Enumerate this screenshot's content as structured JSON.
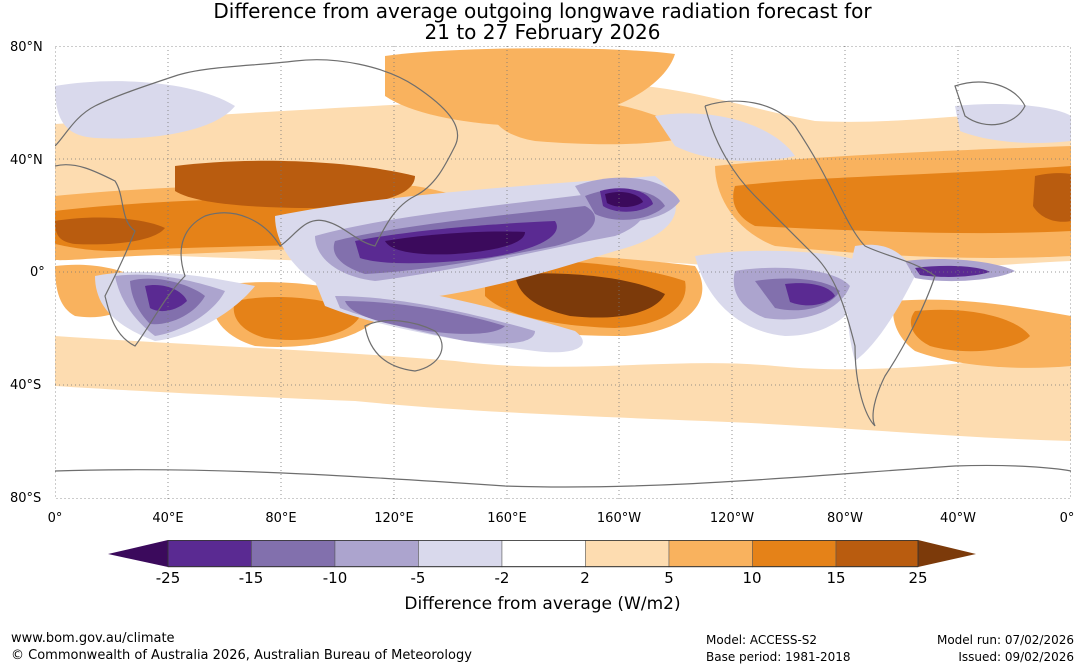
{
  "title_line1": "Difference from average outgoing longwave radiation forecast for",
  "title_line2": "21 to 27 February 2026",
  "lat_labels": [
    "80°N",
    "40°N",
    "0°",
    "40°S",
    "80°S"
  ],
  "lon_labels": [
    "0°",
    "40°E",
    "80°E",
    "120°E",
    "160°E",
    "160°W",
    "120°W",
    "80°W",
    "40°W",
    "0°"
  ],
  "colorbar": {
    "ticks": [
      "-25",
      "-15",
      "-10",
      "-5",
      "-2",
      "2",
      "5",
      "10",
      "15",
      "25"
    ],
    "colors": [
      "#3b0a5c",
      "#5a2a92",
      "#8270ad",
      "#aca4ce",
      "#d9d9ec",
      "#ffffff",
      "#fddcb0",
      "#f9b25e",
      "#e58218",
      "#b95c0f",
      "#7c3a0a"
    ],
    "units_label": "Difference from average (W/m2)"
  },
  "footer": {
    "website": "www.bom.gov.au/climate",
    "copyright": "© Commonwealth of Australia 2026, Australian Bureau of Meteorology",
    "model": "Model: ACCESS-S2",
    "base_period": "Base period: 1981-2018",
    "model_run": "Model run: 07/02/2026",
    "issued": "Issued: 09/02/2026"
  }
}
